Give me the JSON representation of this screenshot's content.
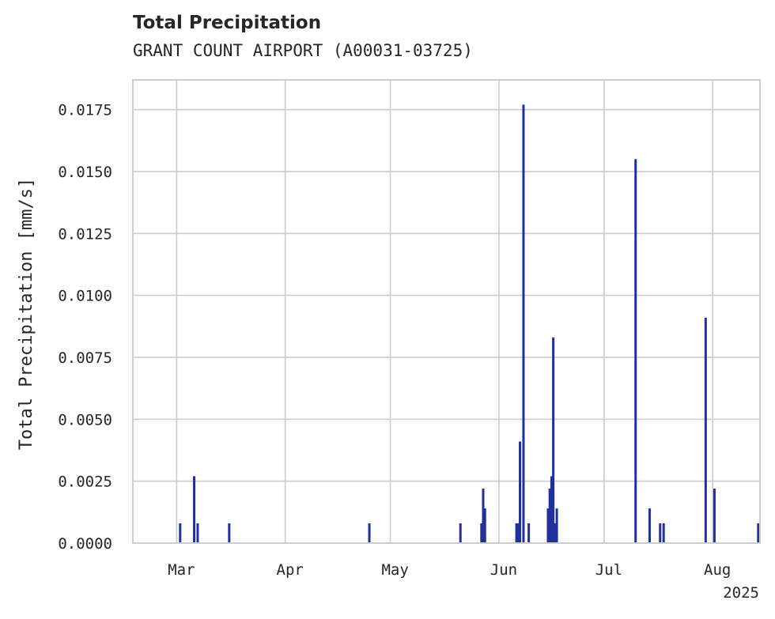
{
  "chart_data": {
    "type": "bar",
    "title": "Total Precipitation",
    "subtitle": "GRANT COUNT AIRPORT (A00031-03725)",
    "xlabel": "",
    "ylabel": "Total Precipitation [mm/s]",
    "x_offset_label": "2025",
    "x_ticks": [
      {
        "label": "Mar",
        "day": 59
      },
      {
        "label": "Apr",
        "day": 90
      },
      {
        "label": "May",
        "day": 120
      },
      {
        "label": "Jun",
        "day": 151
      },
      {
        "label": "Jul",
        "day": 181
      },
      {
        "label": "Aug",
        "day": 212
      }
    ],
    "xlim_day": [
      46.5,
      225.5
    ],
    "ylim": [
      0,
      0.0187
    ],
    "y_ticks": [
      0.0,
      0.0025,
      0.005,
      0.0075,
      0.01,
      0.0125,
      0.015,
      0.0175
    ],
    "y_tick_labels": [
      "0.0000",
      "0.0025",
      "0.0050",
      "0.0075",
      "0.0100",
      "0.0125",
      "0.0150",
      "0.0175"
    ],
    "grid": true,
    "bar_color": "#22309a",
    "x_day_of_year": [
      60,
      64,
      65,
      74,
      114,
      140,
      146,
      146.5,
      147,
      156,
      156.5,
      157,
      158,
      159.5,
      165,
      165.5,
      166,
      166.5,
      167,
      167.5,
      190,
      194,
      197,
      198,
      210,
      212.5,
      225
    ],
    "values": [
      0.0008,
      0.0027,
      0.0008,
      0.0008,
      0.0008,
      0.0008,
      0.0008,
      0.0022,
      0.0014,
      0.0008,
      0.0008,
      0.0041,
      0.0177,
      0.0008,
      0.0014,
      0.0022,
      0.0027,
      0.0083,
      0.0008,
      0.0014,
      0.0155,
      0.0014,
      0.0008,
      0.0008,
      0.0091,
      0.0022,
      0.0008
    ]
  }
}
